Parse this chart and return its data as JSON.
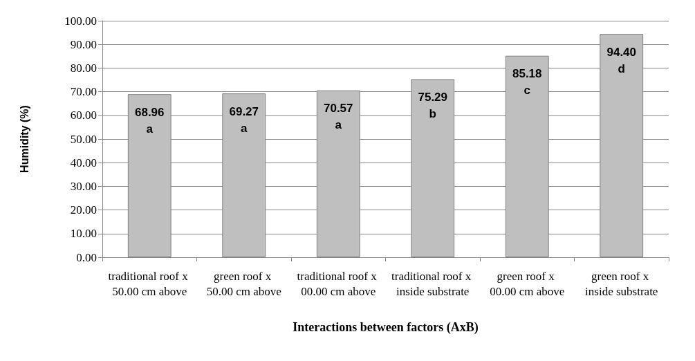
{
  "chart_data": {
    "type": "bar",
    "xlabel": "Interactions between factors (AxB)",
    "ylabel": "Humidity (%)",
    "categories": [
      "traditional roof x 50.00 cm above",
      "green roof x 50.00 cm above",
      "traditional roof x 00.00 cm above",
      "traditional roof x inside substrate",
      "green roof x 00.00 cm above",
      "green roof x inside substrate"
    ],
    "values": [
      68.96,
      69.27,
      70.57,
      75.29,
      85.18,
      94.4
    ],
    "value_labels": [
      "68.96\na",
      "69.27\na",
      "70.57\na",
      "75.29\nb",
      "85.18\nc",
      "94.40\nd"
    ],
    "color": "#bfbfbf",
    "ylim": [
      0,
      100
    ],
    "yticks": [
      {
        "value": 0,
        "label": "0.00"
      },
      {
        "value": 10,
        "label": "10.00"
      },
      {
        "value": 20,
        "label": "20.00"
      },
      {
        "value": 30,
        "label": "30.00"
      },
      {
        "value": 40,
        "label": "40.00"
      },
      {
        "value": 50,
        "label": "50.00"
      },
      {
        "value": 60,
        "label": "60.00"
      },
      {
        "value": 70,
        "label": "70.00"
      },
      {
        "value": 80,
        "label": "80.00"
      },
      {
        "value": 90,
        "label": "90.00"
      },
      {
        "value": 100,
        "label": "100.00"
      }
    ],
    "grid": "y"
  }
}
